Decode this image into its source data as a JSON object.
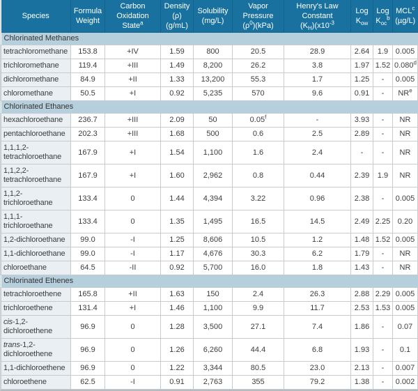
{
  "colors": {
    "header_bg": "#19719f",
    "header_divider": "#15628b",
    "header_text": "#ffffff",
    "section_bg": "#b5cfdc",
    "species_column_bg": "#e9eff3",
    "grid_border": "#c6cbd0",
    "body_text": "#3d3d3d"
  },
  "table": {
    "columns": [
      {
        "id": "species",
        "header": [
          "Species"
        ]
      },
      {
        "id": "formula-weight",
        "header": [
          "Formula",
          "Weight"
        ]
      },
      {
        "id": "carbon-oxidation-state",
        "header": [
          "Carbon",
          "Oxidation State^a^"
        ]
      },
      {
        "id": "density",
        "header": [
          "Density (ρ)",
          "(g/mL)"
        ]
      },
      {
        "id": "solubility",
        "header": [
          "Solubility",
          "(mg/L)"
        ]
      },
      {
        "id": "vapor-pressure",
        "header": [
          "Vapor Pressure",
          "(ρ^0^)(kPa)"
        ]
      },
      {
        "id": "henrys-law-constant",
        "header": [
          "Henry's Law Constant",
          "(K~H~)(x10^-3^"
        ]
      },
      {
        "id": "log-kow",
        "header": [
          "Log",
          "K~ow~"
        ]
      },
      {
        "id": "log-koc",
        "header": [
          "Log",
          "K~oc~^b^"
        ]
      },
      {
        "id": "mcl",
        "header": [
          "MCL^c^",
          "(µg/L)"
        ]
      }
    ],
    "sections": [
      {
        "title": "Chlorinated Methanes",
        "rows": [
          {
            "species": "tetrachloromethane",
            "values": [
              "153.8",
              "+IV",
              "1.59",
              "800",
              "20.5",
              "28.9",
              "2.64",
              "1.9",
              "0.005"
            ]
          },
          {
            "species": "trichloromethane",
            "values": [
              "119.4",
              "+III",
              "1.49",
              "8,200",
              "26.2",
              "3.8",
              "1.97",
              "1.52",
              "0.080^d^"
            ]
          },
          {
            "species": "dichloromethane",
            "values": [
              "84.9",
              "+II",
              "1.33",
              "13,200",
              "55.3",
              "1.7",
              "1.25",
              "-",
              "0.005"
            ]
          },
          {
            "species": "chloromethane",
            "values": [
              "50.5",
              "+I",
              "0.92",
              "5,235",
              "570",
              "9.6",
              "0.91",
              "-",
              "NR^e^"
            ]
          }
        ]
      },
      {
        "title": "Chlorinated Ethanes",
        "rows": [
          {
            "species": "hexachloroethane",
            "values": [
              "236.7",
              "+III",
              "2.09",
              "50",
              "0.05^f^",
              "-",
              "3.93",
              "-",
              "NR"
            ]
          },
          {
            "species": "pentachloroethane",
            "values": [
              "202.3",
              "+III",
              "1.68",
              "500",
              "0.6",
              "2.5",
              "2.89",
              "-",
              "NR"
            ]
          },
          {
            "species": "1,1,1,2-tetrachloroethane",
            "values": [
              "167.9",
              "+I",
              "1.54",
              "1,100",
              "1.6",
              "2.4",
              "-",
              "-",
              "NR"
            ]
          },
          {
            "species": "1,1,2,2-tetrachloroethane",
            "values": [
              "167.9",
              "+I",
              "1.60",
              "2,962",
              "0.8",
              "0.44",
              "2.39",
              "1.9",
              "NR"
            ]
          },
          {
            "species": "1,1,2-trichloroethane",
            "values": [
              "133.4",
              "0",
              "1.44",
              "4,394",
              "3.22",
              "0.96",
              "2.38",
              "-",
              "0.005"
            ]
          },
          {
            "species": "1,1,1-trichloroethane",
            "values": [
              "133.4",
              "0",
              "1.35",
              "1,495",
              "16.5",
              "14.5",
              "2.49",
              "2.25",
              "0.20"
            ]
          },
          {
            "species": "1,2-dichloroethane",
            "values": [
              "99.0",
              "-I",
              "1.25",
              "8,606",
              "10.5",
              "1.2",
              "1.48",
              "1.52",
              "0.005"
            ]
          },
          {
            "species": "1,1-dichloroethane",
            "values": [
              "99.0",
              "-I",
              "1.17",
              "4,676",
              "30.3",
              "6.2",
              "1.79",
              "-",
              "NR"
            ]
          },
          {
            "species": "chloroethane",
            "values": [
              "64.5",
              "-II",
              "0.92",
              "5,700",
              "16.0",
              "1.8",
              "1.43",
              "-",
              "NR"
            ]
          }
        ]
      },
      {
        "title": "Chlorinated Ethenes",
        "rows": [
          {
            "species": "tetrachloroethene",
            "values": [
              "165.8",
              "+II",
              "1.63",
              "150",
              "2.4",
              "26.3",
              "2.88",
              "2.29",
              "0.005"
            ]
          },
          {
            "species": "trichloroethene",
            "values": [
              "131.4",
              "+I",
              "1.46",
              "1,100",
              "9.9",
              "11.7",
              "2.53",
              "1.53",
              "0.005"
            ]
          },
          {
            "species": "*cis*-1,2-dichloroethene",
            "values": [
              "96.9",
              "0",
              "1.28",
              "3,500",
              "27.1",
              "7.4",
              "1.86",
              "-",
              "0.07"
            ]
          },
          {
            "species": "*trans*-1,2-dichloroethene",
            "values": [
              "96.9",
              "0",
              "1.26",
              "6,260",
              "44.4",
              "6.8",
              "1.93",
              "-",
              "0.1"
            ]
          },
          {
            "species": "1,1-dichloroethene",
            "values": [
              "96.9",
              "0",
              "1.22",
              "3,344",
              "80.5",
              "23.0",
              "2.13",
              "-",
              "0.007"
            ]
          },
          {
            "species": "chloroethene",
            "values": [
              "62.5",
              "-I",
              "0.91",
              "2,763",
              "355",
              "79.2",
              "1.38",
              "-",
              "0.002"
            ]
          }
        ]
      }
    ]
  }
}
